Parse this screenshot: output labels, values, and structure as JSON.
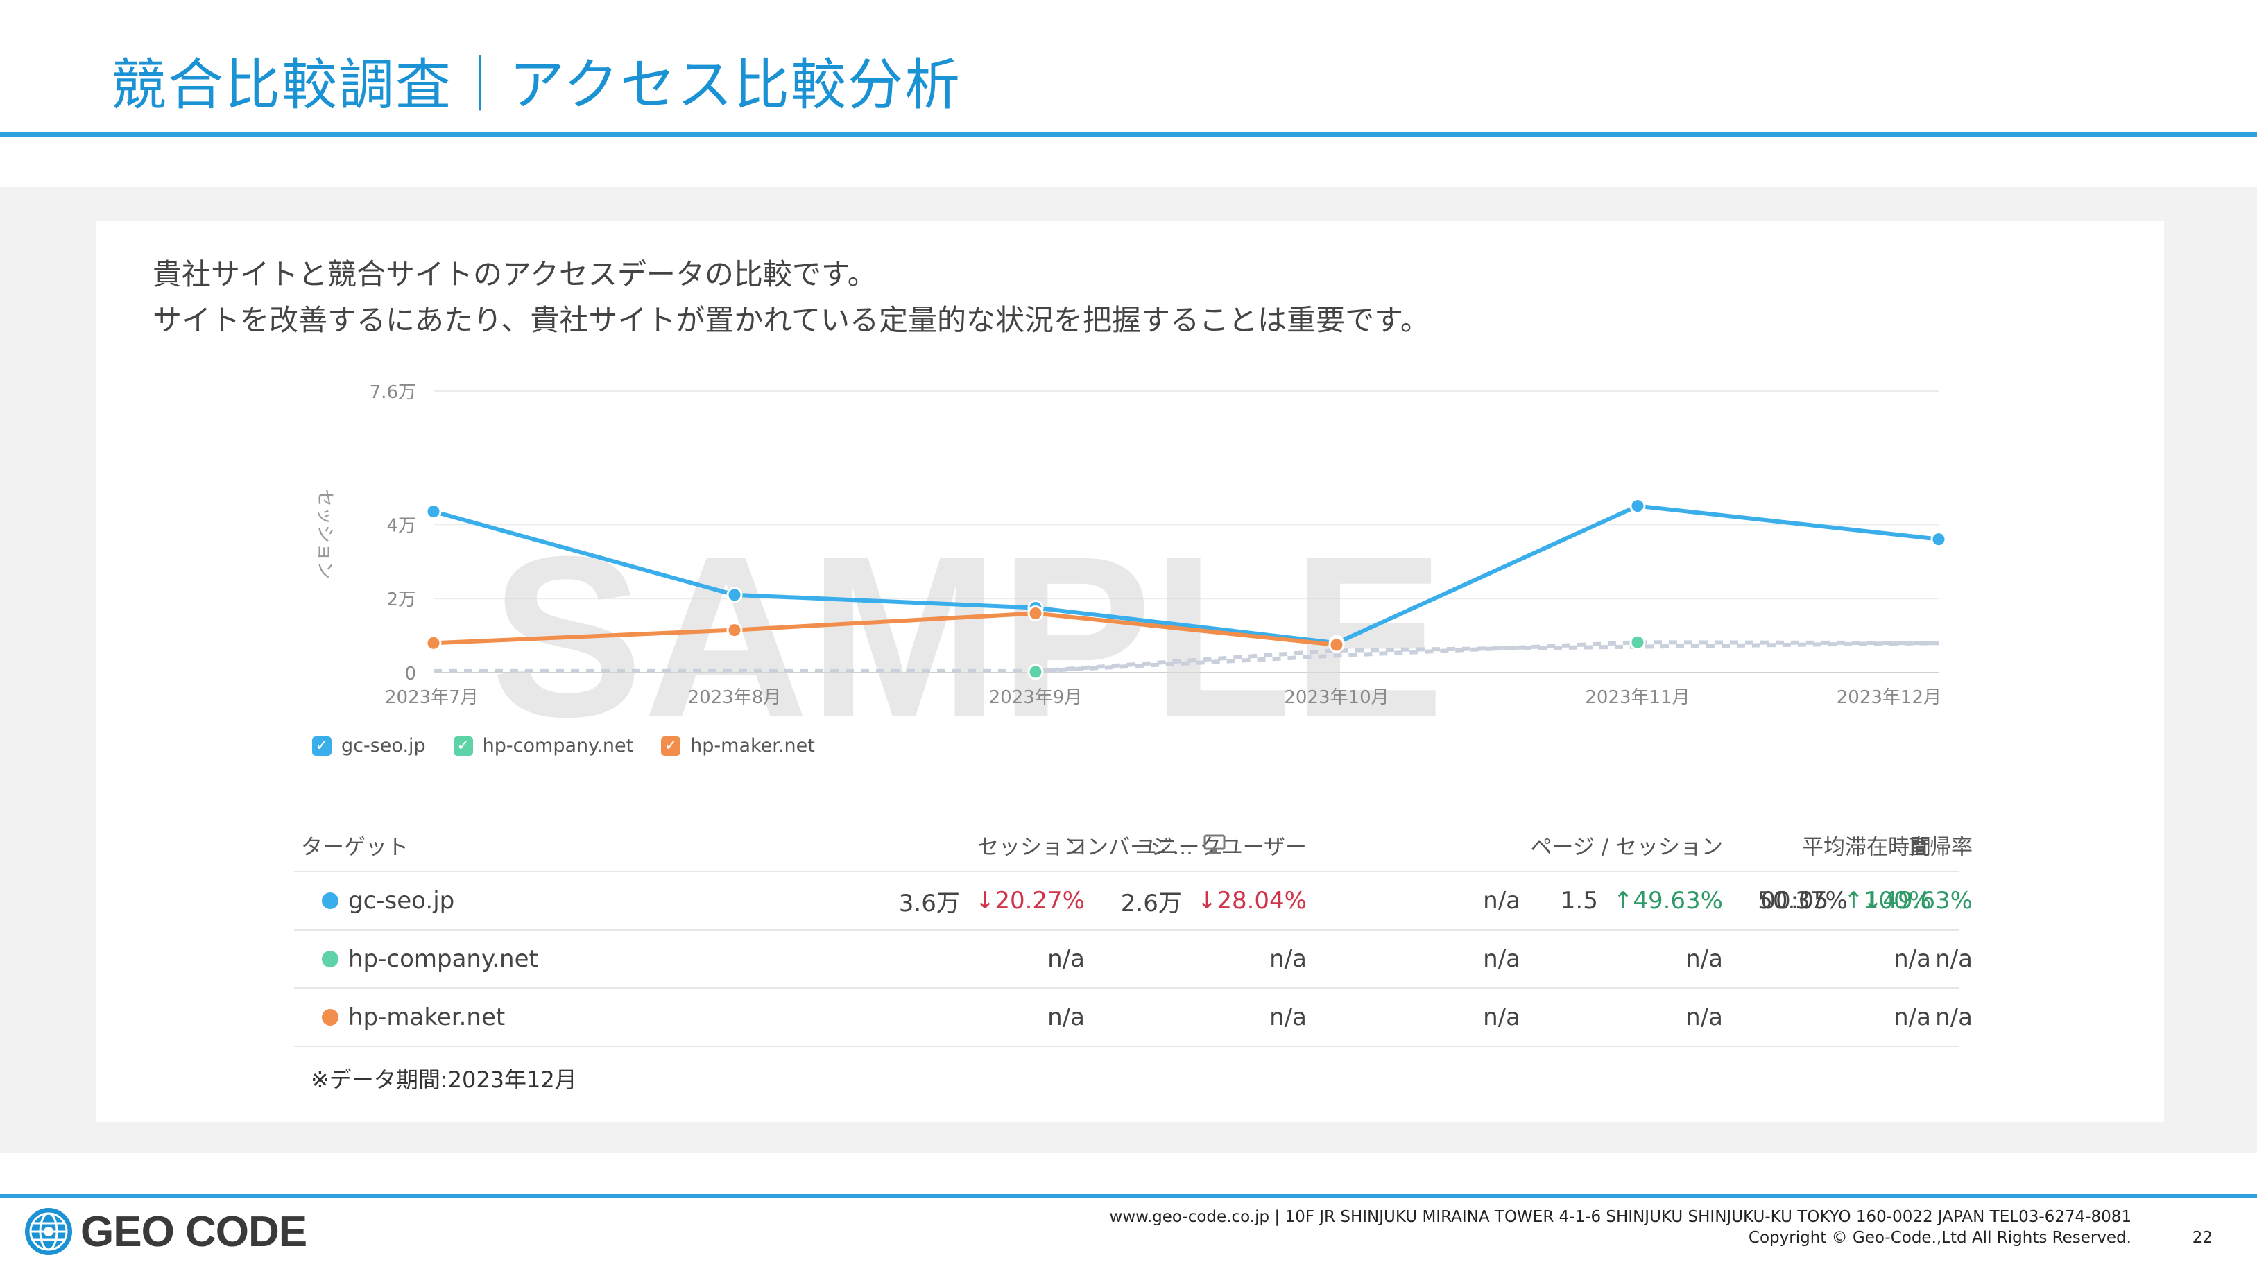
{
  "slide": {
    "title": "競合比較調査｜アクセス比較分析",
    "intro_line1": "貴社サイトと競合サイトのアクセスデータの比較です。",
    "intro_line2": "サイトを改善するにあたり、貴社サイトが置かれている定量的な状況を把握することは重要です。",
    "watermark": "SAMPLE",
    "note": "※データ期間:2023年12月",
    "page_number": "22"
  },
  "chart_data": {
    "type": "line",
    "title": "",
    "xlabel": "",
    "ylabel": "セッション",
    "categories": [
      "2023年7月",
      "2023年8月",
      "2023年9月",
      "2023年10月",
      "2023年11月",
      "2023年12月"
    ],
    "y_ticks": [
      {
        "value": 0,
        "label": "0"
      },
      {
        "value": 20000,
        "label": "2万"
      },
      {
        "value": 40000,
        "label": "4万"
      },
      {
        "value": 76000,
        "label": "7.6万"
      }
    ],
    "ylim": [
      0,
      76000
    ],
    "grid": true,
    "legend_position": "bottom-left",
    "series": [
      {
        "name": "gc-seo.jp",
        "color": "#3aaeea",
        "values": [
          43500,
          21000,
          17500,
          8000,
          45000,
          36000
        ]
      },
      {
        "name": "hp-company.net",
        "color": "#5fd3a8",
        "values": [
          null,
          null,
          200,
          null,
          8200,
          null
        ]
      },
      {
        "name": "hp-maker.net",
        "color": "#f28e4c",
        "values": [
          8000,
          11500,
          16000,
          7500,
          null,
          null
        ]
      }
    ],
    "dashed_trends": [
      {
        "color": "#c9cfdb",
        "values": [
          400,
          400,
          400,
          4600,
          8200,
          8000
        ]
      },
      {
        "color": "#c9cfdb",
        "values": [
          null,
          null,
          400,
          6000,
          7000,
          8000
        ]
      }
    ]
  },
  "table": {
    "headers": {
      "target": "ターゲット",
      "sessions": "セッション",
      "users": "ユニークユーザー",
      "conversions": "コンバージ...",
      "pages": "ページ / セッション",
      "duration": "平均滞在時間",
      "bounce": "直帰率"
    },
    "rows": [
      {
        "site": "gc-seo.jp",
        "color": "#3aaeea",
        "sessions": "3.6万",
        "sessions_delta": "↓20.27%",
        "sessions_delta_color": "#d0344a",
        "users": "2.6万",
        "users_delta": "↓28.04%",
        "users_delta_color": "#d0344a",
        "conversions": "n/a",
        "pages": "1.5",
        "pages_delta": "↑49.63%",
        "pages_delta_color": "#2f9a68",
        "duration": "00:05",
        "duration_delta": "↑100%",
        "duration_delta_color": "#2f9a68",
        "bounce": "50.37%",
        "bounce_delta": "↓49.63%",
        "bounce_delta_color": "#2f9a68"
      },
      {
        "site": "hp-company.net",
        "color": "#5fd3a8",
        "sessions": "n/a",
        "users": "n/a",
        "conversions": "n/a",
        "pages": "n/a",
        "duration": "n/a",
        "bounce": "n/a"
      },
      {
        "site": "hp-maker.net",
        "color": "#f28e4c",
        "sessions": "n/a",
        "users": "n/a",
        "conversions": "n/a",
        "pages": "n/a",
        "duration": "n/a",
        "bounce": "n/a"
      }
    ]
  },
  "footer": {
    "logo_text": "GEO CODE",
    "address": "www.geo-code.co.jp  |  10F JR SHINJUKU MIRAINA TOWER 4-1-6 SHINJUKU SHINJUKU-KU TOKYO 160-0022  JAPAN  TEL03-6274-8081",
    "copyright": "Copyright © Geo-Code.,Ltd All Rights Reserved."
  }
}
